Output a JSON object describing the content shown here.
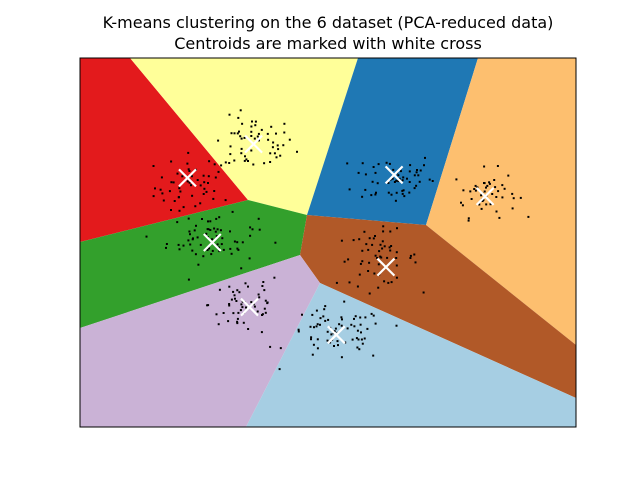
{
  "chart_data": {
    "type": "scatter",
    "title": "K-means clustering on the 6 dataset (PCA-reduced data)",
    "subtitle": "Centroids are marked with white cross",
    "xlabel": "",
    "ylabel": "",
    "xlim": [
      -6,
      6
    ],
    "ylim": [
      -6,
      6
    ],
    "xticks": [],
    "yticks": [],
    "grid": false,
    "legend": "none",
    "marker_color": "#000000",
    "centroid_color": "#ffffff",
    "regions": [
      {
        "name": "red",
        "color": "#e31a1c"
      },
      {
        "name": "yellow",
        "color": "#ffff99"
      },
      {
        "name": "blue",
        "color": "#1f78b4"
      },
      {
        "name": "orange",
        "color": "#fdbf6f"
      },
      {
        "name": "green",
        "color": "#33a02c"
      },
      {
        "name": "brown",
        "color": "#b15928"
      },
      {
        "name": "lavender",
        "color": "#cab2d6"
      },
      {
        "name": "light-blue",
        "color": "#a6cee3"
      }
    ],
    "centroids": [
      {
        "x": -3.4,
        "y": 2.1
      },
      {
        "x": -1.8,
        "y": 3.2
      },
      {
        "x": 1.6,
        "y": 2.2
      },
      {
        "x": 3.8,
        "y": 1.5
      },
      {
        "x": -2.8,
        "y": 0.0
      },
      {
        "x": 1.4,
        "y": -0.8
      },
      {
        "x": -1.9,
        "y": -2.1
      },
      {
        "x": 0.2,
        "y": -3.0
      }
    ],
    "cluster_spread": [
      {
        "cx": -3.2,
        "cy": 1.8,
        "sx": 0.9,
        "sy": 1.0,
        "n": 55
      },
      {
        "cx": -1.8,
        "cy": 3.2,
        "sx": 0.9,
        "sy": 0.8,
        "n": 55
      },
      {
        "cx": 1.6,
        "cy": 2.1,
        "sx": 0.9,
        "sy": 0.8,
        "n": 55
      },
      {
        "cx": 3.8,
        "cy": 1.6,
        "sx": 0.7,
        "sy": 0.7,
        "n": 50
      },
      {
        "cx": -2.8,
        "cy": 0.1,
        "sx": 1.0,
        "sy": 0.7,
        "n": 60
      },
      {
        "cx": 1.2,
        "cy": -0.5,
        "sx": 0.9,
        "sy": 0.8,
        "n": 55
      },
      {
        "cx": -2.0,
        "cy": -2.0,
        "sx": 0.8,
        "sy": 1.0,
        "n": 55
      },
      {
        "cx": 0.2,
        "cy": -3.0,
        "sx": 1.1,
        "sy": 0.8,
        "n": 70
      }
    ]
  }
}
